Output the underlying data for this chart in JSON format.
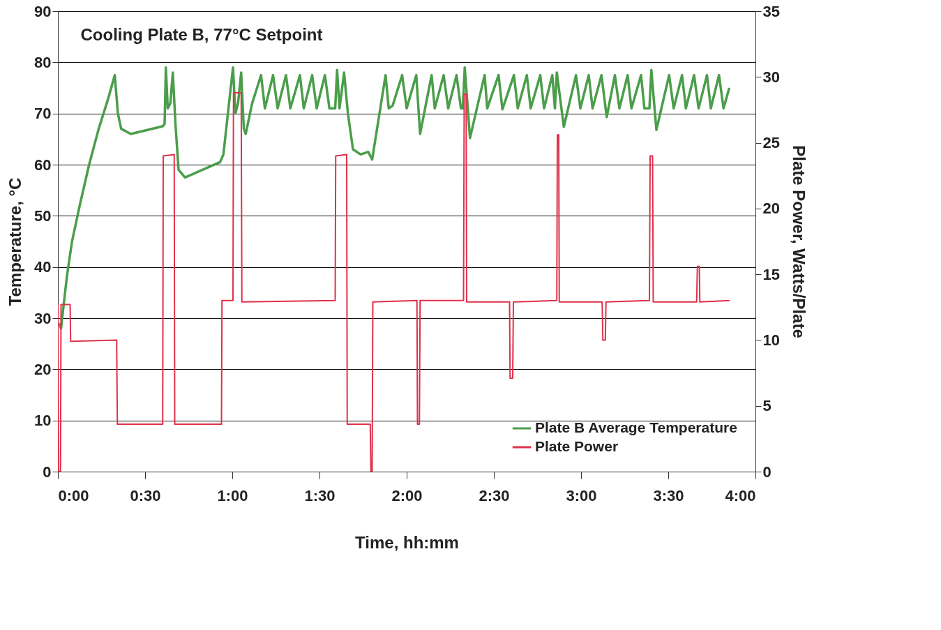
{
  "chart_data": {
    "type": "line",
    "title": "Cooling Plate B, 77°C Setpoint",
    "xlabel": "Time, hh:mm",
    "ylabel": "Temperature, °C",
    "y2label": "Plate Power, Watts/Plate",
    "xlim": [
      0,
      4
    ],
    "xticks": [
      {
        "value": 0,
        "label": "0:00"
      },
      {
        "value": 0.5,
        "label": "0:30"
      },
      {
        "value": 1,
        "label": "1:00"
      },
      {
        "value": 1.5,
        "label": "1:30"
      },
      {
        "value": 2,
        "label": "2:00"
      },
      {
        "value": 2.5,
        "label": "2:30"
      },
      {
        "value": 3,
        "label": "3:00"
      },
      {
        "value": 3.5,
        "label": "3:30"
      },
      {
        "value": 4,
        "label": "4:00"
      }
    ],
    "ylim": [
      0,
      90
    ],
    "yticks": [
      0,
      10,
      20,
      30,
      40,
      50,
      60,
      70,
      80,
      90
    ],
    "y2lim": [
      0,
      35
    ],
    "y2ticks": [
      0,
      5,
      10,
      15,
      20,
      25,
      30,
      35
    ],
    "grid": "y",
    "legend": "bottom right",
    "line_style": "solid",
    "marker": "none",
    "series": [
      {
        "name": "Plate B Average Temperature",
        "color": "#4a9e4a",
        "x": [
          0.007,
          0.018,
          0.051,
          0.081,
          0.125,
          0.179,
          0.234,
          0.289,
          0.326,
          0.344,
          0.363,
          0.418,
          0.601,
          0.612,
          0.619,
          0.63,
          0.645,
          0.659,
          0.674,
          0.692,
          0.729,
          0.93,
          0.949,
          1.004,
          1.018,
          1.033,
          1.051,
          1.066,
          1.077,
          1.114,
          1.165,
          1.187,
          1.234,
          1.26,
          1.308,
          1.333,
          1.388,
          1.41,
          1.458,
          1.484,
          1.531,
          1.557,
          1.59,
          1.601,
          1.615,
          1.641,
          1.663,
          1.692,
          1.736,
          1.78,
          1.802,
          1.879,
          1.897,
          1.919,
          1.974,
          2.0,
          2.055,
          2.077,
          2.143,
          2.161,
          2.212,
          2.238,
          2.286,
          2.311,
          2.322,
          2.333,
          2.363,
          2.447,
          2.462,
          2.527,
          2.549,
          2.615,
          2.637,
          2.689,
          2.711,
          2.766,
          2.788,
          2.835,
          2.85,
          2.861,
          2.901,
          2.971,
          2.996,
          3.044,
          3.066,
          3.117,
          3.147,
          3.194,
          3.22,
          3.267,
          3.289,
          3.344,
          3.363,
          3.392,
          3.403,
          3.432,
          3.505,
          3.531,
          3.579,
          3.601,
          3.648,
          3.674,
          3.722,
          3.744,
          3.791,
          3.817,
          3.85
        ],
        "values": [
          29,
          28,
          38,
          45,
          52,
          60,
          67,
          73,
          77.5,
          70,
          67,
          66,
          67.5,
          68,
          79,
          71,
          72,
          78,
          68,
          59,
          57.5,
          60.5,
          62,
          79,
          70,
          72,
          78,
          67,
          66,
          72,
          77.5,
          71,
          77.5,
          71,
          77.5,
          71,
          77.5,
          71,
          77.5,
          71,
          77.5,
          71,
          71,
          78.5,
          71,
          78,
          70,
          63,
          62,
          62.5,
          61,
          77.5,
          71,
          71.5,
          77.5,
          71,
          77.5,
          66,
          77.5,
          71,
          77.5,
          71,
          77.5,
          71,
          71,
          79,
          65.2,
          77.5,
          71,
          77.5,
          70.8,
          77.5,
          71,
          77.5,
          71,
          77.5,
          71,
          77.5,
          71,
          78,
          67.4,
          77.5,
          71,
          77.5,
          71,
          77.5,
          69.3,
          77.5,
          71,
          77.5,
          71,
          77.5,
          71,
          71,
          78.5,
          66.8,
          77.5,
          71,
          77.5,
          71,
          77.5,
          71,
          77.5,
          71,
          77.5,
          71,
          75
        ]
      },
      {
        "name": "Plate Power",
        "color": "#e0304a",
        "axis": "y2",
        "x": [
          0,
          0.004,
          0.015,
          0.018,
          0.07,
          0.073,
          0.337,
          0.341,
          0.601,
          0.604,
          0.667,
          0.67,
          0.938,
          0.941,
          1.004,
          1.007,
          1.051,
          1.055,
          1.59,
          1.593,
          1.656,
          1.659,
          1.791,
          1.795,
          1.802,
          1.806,
          2.059,
          2.062,
          2.073,
          2.077,
          2.326,
          2.33,
          2.341,
          2.344,
          2.59,
          2.593,
          2.608,
          2.612,
          2.861,
          2.864,
          2.872,
          2.875,
          3.121,
          3.125,
          3.139,
          3.143,
          3.392,
          3.396,
          3.41,
          3.414,
          3.663,
          3.667,
          3.678,
          3.681,
          3.853
        ],
        "values": [
          12.7,
          0,
          0,
          12.7,
          12.7,
          9.9,
          10,
          3.6,
          3.6,
          24,
          24.1,
          3.6,
          3.6,
          13,
          13,
          28.8,
          28.8,
          12.9,
          13,
          24,
          24.1,
          3.6,
          3.6,
          0,
          0,
          12.9,
          13,
          3.6,
          3.6,
          13,
          13,
          28.7,
          28.7,
          12.9,
          12.9,
          7.1,
          7.1,
          12.9,
          13,
          25.6,
          25.6,
          12.9,
          12.9,
          10,
          10,
          12.9,
          13,
          24,
          24,
          12.9,
          12.9,
          15.6,
          15.6,
          12.9,
          13
        ]
      }
    ]
  }
}
